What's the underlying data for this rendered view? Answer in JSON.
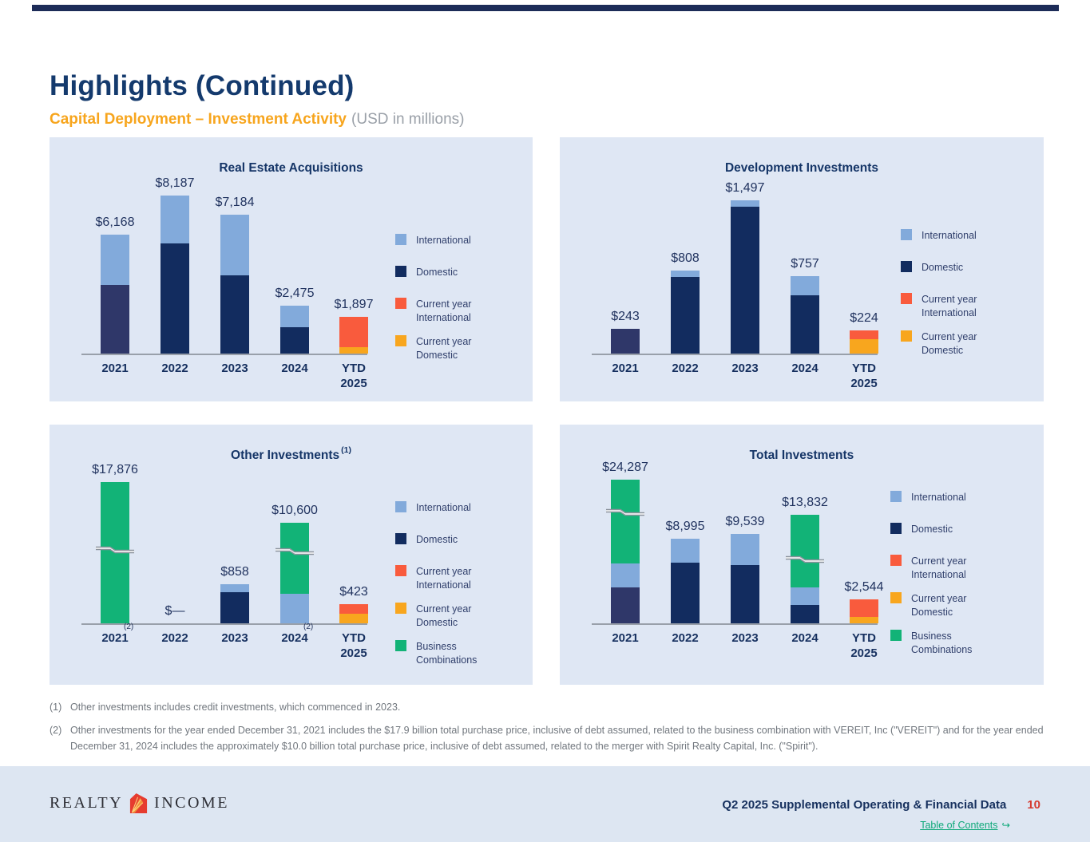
{
  "page": {
    "title": "Highlights (Continued)",
    "subtitle": "Capital Deployment – Investment Activity",
    "subtitle_suffix": "(USD in millions)"
  },
  "colors": {
    "international": "#82aadb",
    "domestic": "#122c5f",
    "domestic_2021": "#2f3769",
    "current_year_international": "#f95b3d",
    "current_year_domestic": "#f8a61e",
    "business_combinations": "#12b377",
    "accent_orange": "#f7a51d",
    "title_navy": "#143a6d",
    "page_number_red": "#d53a30",
    "link_green": "#10a97a"
  },
  "chart_data": [
    {
      "type": "bar",
      "stacked": true,
      "title": "Real Estate Acquisitions",
      "title_sup": "",
      "unit": "USD in millions",
      "categories": [
        "2021",
        "2022",
        "2023",
        "2024",
        "YTD 2025"
      ],
      "legend": [
        {
          "key": "international",
          "label": "International"
        },
        {
          "key": "domestic",
          "label": "Domestic"
        },
        {
          "key": "current_year_international",
          "label": "Current year International"
        },
        {
          "key": "current_year_domestic",
          "label": "Current year Domestic"
        }
      ],
      "segments_estimated": true,
      "bars": [
        {
          "category": "2021",
          "total": 6168,
          "total_label": "$6,168",
          "segments": [
            {
              "key": "domestic",
              "color_key": "domestic_2021",
              "value": 3570
            },
            {
              "key": "international",
              "value": 2598
            }
          ]
        },
        {
          "category": "2022",
          "total": 8187,
          "total_label": "$8,187",
          "segments": [
            {
              "key": "domestic",
              "value": 5712
            },
            {
              "key": "international",
              "value": 2475
            }
          ]
        },
        {
          "category": "2023",
          "total": 7184,
          "total_label": "$7,184",
          "segments": [
            {
              "key": "domestic",
              "value": 4062
            },
            {
              "key": "international",
              "value": 3122
            }
          ]
        },
        {
          "category": "2024",
          "total": 2475,
          "total_label": "$2,475",
          "segments": [
            {
              "key": "domestic",
              "value": 1360
            },
            {
              "key": "international",
              "value": 1115
            }
          ]
        },
        {
          "category": "YTD 2025",
          "total": 1897,
          "total_label": "$1,897",
          "segments": [
            {
              "key": "current_year_domestic",
              "value": 340
            },
            {
              "key": "current_year_international",
              "value": 1557
            }
          ]
        }
      ]
    },
    {
      "type": "bar",
      "stacked": true,
      "title": "Development Investments",
      "title_sup": "",
      "unit": "USD in millions",
      "categories": [
        "2021",
        "2022",
        "2023",
        "2024",
        "YTD 2025"
      ],
      "legend": [
        {
          "key": "international",
          "label": "International"
        },
        {
          "key": "domestic",
          "label": "Domestic"
        },
        {
          "key": "current_year_international",
          "label": "Current year International"
        },
        {
          "key": "current_year_domestic",
          "label": "Current year Domestic"
        }
      ],
      "segments_estimated": true,
      "bars": [
        {
          "category": "2021",
          "total": 243,
          "total_label": "$243",
          "segments": [
            {
              "key": "domestic",
              "color_key": "domestic_2021",
              "value": 243
            }
          ]
        },
        {
          "category": "2022",
          "total": 808,
          "total_label": "$808",
          "segments": [
            {
              "key": "domestic",
              "value": 748
            },
            {
              "key": "international",
              "value": 60
            }
          ]
        },
        {
          "category": "2023",
          "total": 1497,
          "total_label": "$1,497",
          "segments": [
            {
              "key": "domestic",
              "value": 1432
            },
            {
              "key": "international",
              "value": 65
            }
          ]
        },
        {
          "category": "2024",
          "total": 757,
          "total_label": "$757",
          "segments": [
            {
              "key": "domestic",
              "value": 570
            },
            {
              "key": "international",
              "value": 187
            }
          ]
        },
        {
          "category": "YTD 2025",
          "total": 224,
          "total_label": "$224",
          "segments": [
            {
              "key": "current_year_domestic",
              "value": 143
            },
            {
              "key": "current_year_international",
              "value": 81
            }
          ]
        }
      ]
    },
    {
      "type": "bar",
      "stacked": true,
      "title": "Other Investments",
      "title_sup": "(1)",
      "unit": "USD in millions",
      "categories": [
        "2021",
        "2022",
        "2023",
        "2024",
        "YTD 2025"
      ],
      "legend": [
        {
          "key": "international",
          "label": "International"
        },
        {
          "key": "domestic",
          "label": "Domestic"
        },
        {
          "key": "current_year_international",
          "label": "Current year International"
        },
        {
          "key": "current_year_domestic",
          "label": "Current year Domestic"
        },
        {
          "key": "business_combinations",
          "label": "Business Combinations"
        }
      ],
      "segments_estimated": true,
      "bars": [
        {
          "category": "2021",
          "category_sup": "(2)",
          "total": 17876,
          "total_label": "$17,876",
          "axis_break": true,
          "segments": [
            {
              "key": "business_combinations",
              "value": 17876
            }
          ]
        },
        {
          "category": "2022",
          "total": 0,
          "total_label": "$—",
          "segments": []
        },
        {
          "category": "2023",
          "total": 858,
          "total_label": "$858",
          "segments": [
            {
              "key": "domestic",
              "value": 683
            },
            {
              "key": "international",
              "value": 175
            }
          ]
        },
        {
          "category": "2024",
          "category_sup": "(2)",
          "total": 10600,
          "total_label": "$10,600",
          "axis_break": true,
          "segments": [
            {
              "key": "international",
              "value": 640
            },
            {
              "key": "business_combinations",
              "value": 9960
            }
          ]
        },
        {
          "category": "YTD 2025",
          "total": 423,
          "total_label": "$423",
          "segments": [
            {
              "key": "current_year_domestic",
              "value": 213
            },
            {
              "key": "current_year_international",
              "value": 210
            }
          ]
        }
      ]
    },
    {
      "type": "bar",
      "stacked": true,
      "title": "Total Investments",
      "title_sup": "",
      "unit": "USD in millions",
      "categories": [
        "2021",
        "2022",
        "2023",
        "2024",
        "YTD 2025"
      ],
      "legend": [
        {
          "key": "international",
          "label": "International"
        },
        {
          "key": "domestic",
          "label": "Domestic"
        },
        {
          "key": "current_year_international",
          "label": "Current year International"
        },
        {
          "key": "current_year_domestic",
          "label": "Current year Domestic"
        },
        {
          "key": "business_combinations",
          "label": "Business Combinations"
        }
      ],
      "segments_estimated": true,
      "bars": [
        {
          "category": "2021",
          "total": 24287,
          "total_label": "$24,287",
          "axis_break": true,
          "segments": [
            {
              "key": "domestic",
              "color_key": "domestic_2021",
              "value": 3813
            },
            {
              "key": "international",
              "value": 2598
            },
            {
              "key": "business_combinations",
              "value": 17876
            }
          ]
        },
        {
          "category": "2022",
          "total": 8995,
          "total_label": "$8,995",
          "segments": [
            {
              "key": "domestic",
              "value": 6460
            },
            {
              "key": "international",
              "value": 2535
            }
          ]
        },
        {
          "category": "2023",
          "total": 9539,
          "total_label": "$9,539",
          "segments": [
            {
              "key": "domestic",
              "value": 6177
            },
            {
              "key": "international",
              "value": 3362
            }
          ]
        },
        {
          "category": "2024",
          "total": 13832,
          "total_label": "$13,832",
          "axis_break": true,
          "segments": [
            {
              "key": "domestic",
              "value": 1930
            },
            {
              "key": "international",
              "value": 1942
            },
            {
              "key": "business_combinations",
              "value": 9960
            }
          ]
        },
        {
          "category": "YTD 2025",
          "total": 2544,
          "total_label": "$2,544",
          "segments": [
            {
              "key": "current_year_domestic",
              "value": 696
            },
            {
              "key": "current_year_international",
              "value": 1848
            }
          ]
        }
      ]
    }
  ],
  "footnotes": [
    {
      "marker": "(1)",
      "text": "Other investments includes credit investments, which commenced in 2023."
    },
    {
      "marker": "(2)",
      "text": "Other investments for the year ended December 31, 2021 includes the $17.9 billion total purchase price, inclusive of debt assumed, related to the business combination with VEREIT, Inc (\"VEREIT\") and for the year ended December 31, 2024 includes the approximately $10.0 billion total purchase price, inclusive of debt assumed, related to the merger with Spirit Realty Capital, Inc. (\"Spirit\")."
    }
  ],
  "footer": {
    "brand_left": "REALTY",
    "brand_right": "INCOME",
    "doc_title": "Q2 2025 Supplemental Operating & Financial Data",
    "page_number": "10",
    "toc_label": "Table of Contents",
    "toc_arrow": "↪"
  }
}
